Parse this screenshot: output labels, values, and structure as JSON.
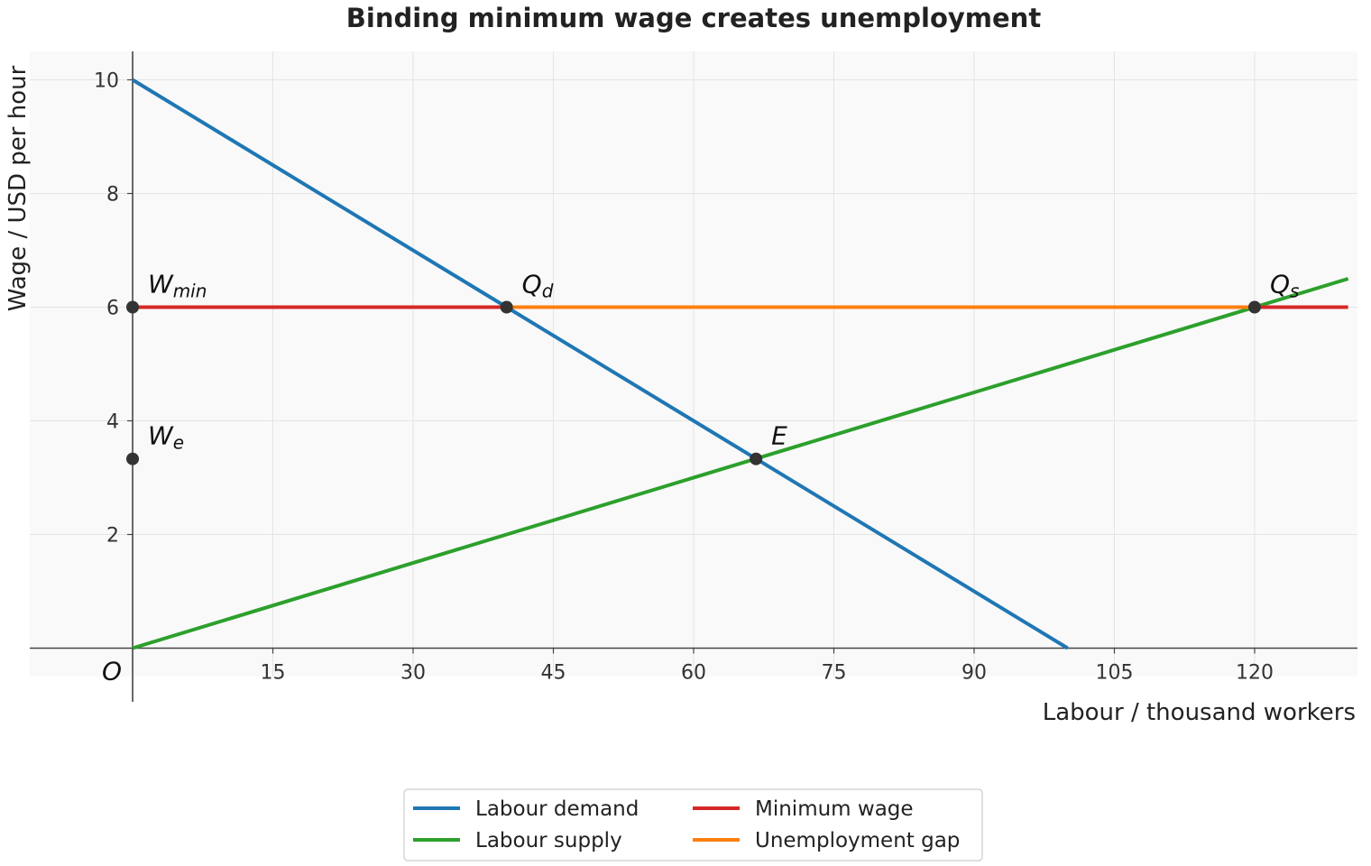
{
  "chart_data": {
    "type": "line",
    "title": "Binding minimum wage creates unemployment",
    "xlabel": "Labour / thousand workers",
    "ylabel": "Wage / USD per hour",
    "origin_label": "O",
    "xlim": [
      -11,
      131
    ],
    "ylim": [
      -0.5,
      10.5
    ],
    "xticks": [
      15,
      30,
      45,
      60,
      75,
      90,
      105,
      120,
      135
    ],
    "yticks": [
      2,
      4,
      6,
      8,
      10
    ],
    "grid": true,
    "legend_position": "bottom-center",
    "series": [
      {
        "name": "Labour demand",
        "color": "#1f77b4",
        "x": [
          0,
          100
        ],
        "y": [
          10,
          0
        ]
      },
      {
        "name": "Labour supply",
        "color": "#2ca02c",
        "x": [
          0,
          130
        ],
        "y": [
          0,
          6.5
        ]
      },
      {
        "name": "Minimum wage",
        "color": "#d62728",
        "x": [
          0,
          130
        ],
        "y": [
          6,
          6
        ]
      },
      {
        "name": "Unemployment gap",
        "color": "#ff7f0e",
        "x": [
          40,
          120
        ],
        "y": [
          6,
          6
        ]
      }
    ],
    "points": [
      {
        "label": "W",
        "sub": "min",
        "x": 0,
        "y": 6
      },
      {
        "label": "Q",
        "sub": "d",
        "x": 40,
        "y": 6
      },
      {
        "label": "Q",
        "sub": "s",
        "x": 120,
        "y": 6
      },
      {
        "label": "E",
        "sub": "",
        "x": 66.67,
        "y": 3.33
      },
      {
        "label": "W",
        "sub": "e",
        "x": 0,
        "y": 3.33
      }
    ]
  }
}
